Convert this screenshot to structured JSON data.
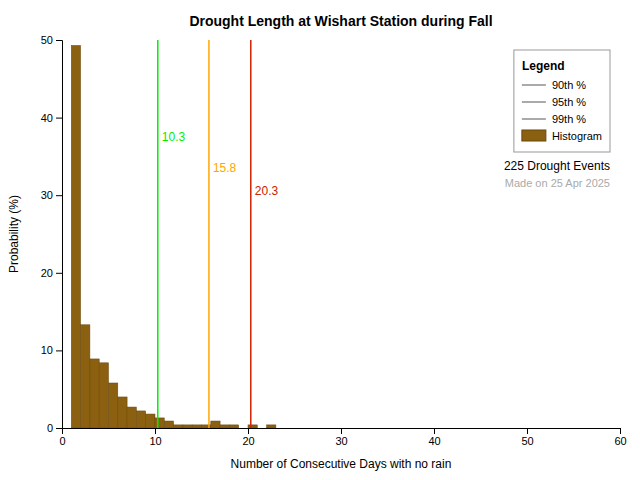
{
  "chart_data": {
    "type": "histogram",
    "title": "Drought Length at Wishart Station during Fall",
    "xlabel": "Number of Consecutive Days with no rain",
    "ylabel": "Probability (%)",
    "xlim": [
      0,
      60
    ],
    "ylim": [
      0,
      50
    ],
    "xticks": [
      0,
      10,
      20,
      30,
      40,
      50,
      60
    ],
    "yticks": [
      0,
      10,
      20,
      30,
      40,
      50
    ],
    "grid": false,
    "legend": "upper right",
    "legend_title": "Legend",
    "bins": [
      1,
      2,
      3,
      4,
      5,
      6,
      7,
      8,
      9,
      10,
      11,
      12,
      13,
      14,
      15,
      16,
      17,
      18,
      19,
      20,
      21,
      22,
      23,
      24,
      25,
      26
    ],
    "series": [
      {
        "name": "Histogram",
        "color": "#8B6010",
        "values": [
          49.3,
          13.3,
          8.9,
          8.4,
          5.8,
          4.0,
          2.7,
          2.2,
          1.8,
          1.3,
          0.9,
          0.4,
          0.4,
          0.4,
          0.4,
          0.9,
          0.4,
          0.4,
          0.0,
          0.4,
          0.0,
          0.4,
          0.0,
          0.0,
          0.0
        ]
      }
    ],
    "reference_lines": [
      {
        "name": "90th %",
        "value": 10.3,
        "color": "#00EE00",
        "legend_color": "#AAAAAA",
        "label_y": 37
      },
      {
        "name": "95th %",
        "value": 15.8,
        "color": "#FFA500",
        "legend_color": "#AAAAAA",
        "label_y": 33
      },
      {
        "name": "99th %",
        "value": 20.3,
        "color": "#CC2200",
        "legend_color": "#AAAAAA",
        "label_y": 30
      }
    ],
    "annotations": [
      {
        "text": "225 Drought Events"
      },
      {
        "text": "Made on 25 Apr 2025",
        "color": "#AAAAAA"
      }
    ]
  }
}
